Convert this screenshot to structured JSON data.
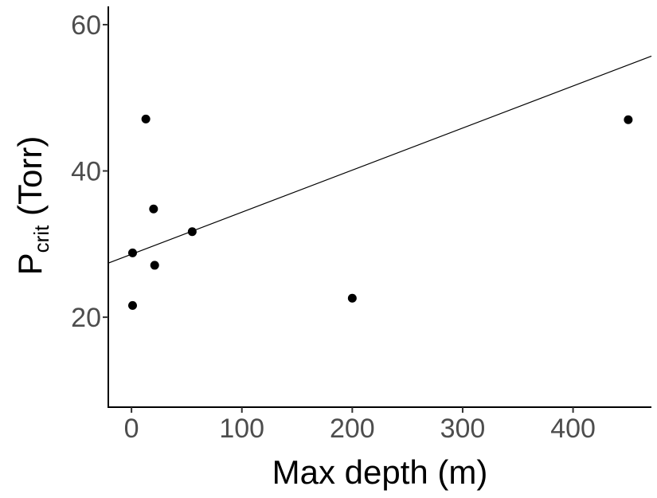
{
  "chart_data": {
    "type": "scatter",
    "title": "",
    "xlabel": "Max depth (m)",
    "ylabel_main": "P",
    "ylabel_sub": "crit",
    "ylabel_unit": " (Torr)",
    "xlim": [
      -21,
      471
    ],
    "ylim": [
      7.7,
      62.5
    ],
    "xticks": [
      0,
      100,
      200,
      300,
      400
    ],
    "yticks": [
      20,
      40,
      60
    ],
    "grid": false,
    "legend": "none",
    "points": [
      {
        "x": 1,
        "y": 21.6
      },
      {
        "x": 1,
        "y": 28.8
      },
      {
        "x": 13,
        "y": 47.1
      },
      {
        "x": 20,
        "y": 34.8
      },
      {
        "x": 21,
        "y": 27.1
      },
      {
        "x": 55,
        "y": 31.7
      },
      {
        "x": 200,
        "y": 22.6
      },
      {
        "x": 450,
        "y": 47.0
      }
    ],
    "trendline": {
      "x": [
        -21,
        471
      ],
      "y": [
        27.4,
        55.7
      ]
    },
    "colors": {
      "points": "#000000",
      "line": "#000000",
      "ticks": "#4d4d4d"
    }
  }
}
